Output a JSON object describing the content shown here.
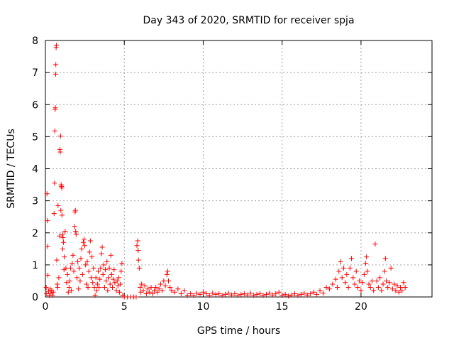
{
  "chart_data": {
    "type": "scatter",
    "title": "Day 343 of 2020, SRMTID for receiver spja",
    "xlabel": "GPS time / hours",
    "ylabel": "SRMTID / TECUs",
    "xlim": [
      0,
      24.5
    ],
    "ylim": [
      0,
      8
    ],
    "xticks": [
      0,
      5,
      10,
      15,
      20
    ],
    "yticks": [
      0,
      1,
      2,
      3,
      4,
      5,
      6,
      7,
      8
    ],
    "grid": true,
    "legend": "none",
    "marker": "+",
    "color": "#ff0000",
    "series": [
      {
        "name": "SRMTID",
        "points": [
          [
            0.05,
            0.3
          ],
          [
            0.08,
            0.1
          ],
          [
            0.1,
            3.22
          ],
          [
            0.12,
            2.38
          ],
          [
            0.14,
            1.58
          ],
          [
            0.16,
            0.68
          ],
          [
            0.2,
            0.18
          ],
          [
            0.25,
            0.05
          ],
          [
            0.3,
            0.25
          ],
          [
            0.35,
            0.12
          ],
          [
            0.4,
            0.2
          ],
          [
            0.45,
            0.05
          ],
          [
            0.5,
            0.15
          ],
          [
            0.55,
            2.6
          ],
          [
            0.58,
            3.55
          ],
          [
            0.6,
            5.18
          ],
          [
            0.62,
            5.85
          ],
          [
            0.63,
            5.9
          ],
          [
            0.65,
            6.95
          ],
          [
            0.66,
            7.25
          ],
          [
            0.68,
            7.78
          ],
          [
            0.7,
            7.85
          ],
          [
            0.72,
            1.15
          ],
          [
            0.75,
            0.4
          ],
          [
            0.78,
            0.3
          ],
          [
            0.8,
            2.85
          ],
          [
            0.85,
            0.6
          ],
          [
            0.9,
            1.9
          ],
          [
            0.92,
            4.6
          ],
          [
            0.94,
            4.52
          ],
          [
            0.96,
            5.02
          ],
          [
            0.98,
            2.7
          ],
          [
            1.0,
            3.5
          ],
          [
            1.02,
            3.45
          ],
          [
            1.04,
            3.4
          ],
          [
            1.05,
            2.55
          ],
          [
            1.08,
            1.95
          ],
          [
            1.1,
            1.5
          ],
          [
            1.12,
            1.85
          ],
          [
            1.15,
            1.7
          ],
          [
            1.18,
            0.85
          ],
          [
            1.2,
            1.25
          ],
          [
            1.25,
            2.05
          ],
          [
            1.3,
            0.9
          ],
          [
            1.35,
            0.45
          ],
          [
            1.4,
            0.7
          ],
          [
            1.45,
            0.15
          ],
          [
            1.5,
            0.3
          ],
          [
            1.55,
            0.5
          ],
          [
            1.6,
            0.9
          ],
          [
            1.65,
            0.2
          ],
          [
            1.7,
            1.05
          ],
          [
            1.75,
            1.3
          ],
          [
            1.8,
            0.8
          ],
          [
            1.85,
            2.2
          ],
          [
            1.88,
            2.65
          ],
          [
            1.9,
            2.7
          ],
          [
            1.92,
            2.05
          ],
          [
            1.95,
            1.95
          ],
          [
            2.0,
            0.6
          ],
          [
            2.05,
            1.1
          ],
          [
            2.1,
            0.25
          ],
          [
            2.15,
            0.9
          ],
          [
            2.2,
            0.5
          ],
          [
            2.25,
            1.2
          ],
          [
            2.3,
            1.5
          ],
          [
            2.35,
            0.7
          ],
          [
            2.4,
            1.7
          ],
          [
            2.45,
            1.8
          ],
          [
            2.5,
            1.6
          ],
          [
            2.55,
            1.0
          ],
          [
            2.6,
            0.4
          ],
          [
            2.65,
            1.1
          ],
          [
            2.7,
            0.3
          ],
          [
            2.75,
            0.8
          ],
          [
            2.8,
            1.4
          ],
          [
            2.85,
            1.75
          ],
          [
            2.9,
            0.6
          ],
          [
            2.95,
            1.25
          ],
          [
            3.0,
            0.45
          ],
          [
            3.05,
            0.9
          ],
          [
            3.1,
            0.3
          ],
          [
            3.15,
            0.05
          ],
          [
            3.2,
            0.6
          ],
          [
            3.25,
            0.2
          ],
          [
            3.3,
            0.4
          ],
          [
            3.35,
            0.8
          ],
          [
            3.4,
            0.3
          ],
          [
            3.45,
            0.55
          ],
          [
            3.5,
            0.9
          ],
          [
            3.55,
            1.35
          ],
          [
            3.6,
            1.55
          ],
          [
            3.65,
            0.7
          ],
          [
            3.7,
            1.0
          ],
          [
            3.75,
            0.3
          ],
          [
            3.8,
            0.85
          ],
          [
            3.85,
            0.5
          ],
          [
            3.9,
            1.1
          ],
          [
            3.95,
            0.2
          ],
          [
            4.0,
            0.6
          ],
          [
            4.05,
            0.9
          ],
          [
            4.1,
            0.4
          ],
          [
            4.15,
            1.3
          ],
          [
            4.2,
            0.7
          ],
          [
            4.25,
            0.3
          ],
          [
            4.3,
            0.55
          ],
          [
            4.35,
            0.85
          ],
          [
            4.4,
            0.45
          ],
          [
            4.5,
            0.2
          ],
          [
            4.55,
            0.5
          ],
          [
            4.6,
            0.35
          ],
          [
            4.65,
            0.6
          ],
          [
            4.7,
            0.15
          ],
          [
            4.75,
            0.4
          ],
          [
            4.8,
            0.8
          ],
          [
            4.85,
            1.05
          ],
          [
            4.9,
            0.05
          ],
          [
            5.0,
            0.0
          ],
          [
            5.2,
            0.0
          ],
          [
            5.4,
            0.0
          ],
          [
            5.6,
            0.0
          ],
          [
            5.75,
            0.0
          ],
          [
            5.8,
            1.6
          ],
          [
            5.85,
            1.75
          ],
          [
            5.88,
            1.45
          ],
          [
            5.9,
            1.15
          ],
          [
            5.95,
            0.9
          ],
          [
            6.0,
            0.3
          ],
          [
            6.05,
            0.15
          ],
          [
            6.1,
            0.4
          ],
          [
            6.2,
            0.2
          ],
          [
            6.3,
            0.35
          ],
          [
            6.4,
            0.1
          ],
          [
            6.5,
            0.25
          ],
          [
            6.6,
            0.15
          ],
          [
            6.7,
            0.3
          ],
          [
            6.8,
            0.1
          ],
          [
            6.9,
            0.2
          ],
          [
            7.0,
            0.3
          ],
          [
            7.1,
            0.15
          ],
          [
            7.2,
            0.25
          ],
          [
            7.3,
            0.4
          ],
          [
            7.4,
            0.2
          ],
          [
            7.5,
            0.5
          ],
          [
            7.6,
            0.35
          ],
          [
            7.7,
            0.7
          ],
          [
            7.75,
            0.8
          ],
          [
            7.8,
            0.5
          ],
          [
            7.9,
            0.3
          ],
          [
            8.0,
            0.2
          ],
          [
            8.2,
            0.15
          ],
          [
            8.4,
            0.25
          ],
          [
            8.6,
            0.1
          ],
          [
            8.8,
            0.2
          ],
          [
            9.0,
            0.05
          ],
          [
            9.2,
            0.1
          ],
          [
            9.4,
            0.05
          ],
          [
            9.6,
            0.12
          ],
          [
            9.8,
            0.08
          ],
          [
            10.0,
            0.15
          ],
          [
            10.2,
            0.1
          ],
          [
            10.4,
            0.05
          ],
          [
            10.6,
            0.12
          ],
          [
            10.8,
            0.08
          ],
          [
            11.0,
            0.1
          ],
          [
            11.2,
            0.05
          ],
          [
            11.4,
            0.08
          ],
          [
            11.6,
            0.12
          ],
          [
            11.8,
            0.06
          ],
          [
            12.0,
            0.1
          ],
          [
            12.2,
            0.05
          ],
          [
            12.4,
            0.08
          ],
          [
            12.6,
            0.1
          ],
          [
            12.8,
            0.06
          ],
          [
            13.0,
            0.12
          ],
          [
            13.2,
            0.05
          ],
          [
            13.4,
            0.08
          ],
          [
            13.6,
            0.1
          ],
          [
            13.8,
            0.05
          ],
          [
            14.0,
            0.08
          ],
          [
            14.2,
            0.12
          ],
          [
            14.4,
            0.06
          ],
          [
            14.6,
            0.1
          ],
          [
            14.8,
            0.15
          ],
          [
            15.0,
            0.05
          ],
          [
            15.2,
            0.08
          ],
          [
            15.4,
            0.03
          ],
          [
            15.6,
            0.06
          ],
          [
            15.8,
            0.1
          ],
          [
            16.0,
            0.05
          ],
          [
            16.2,
            0.08
          ],
          [
            16.4,
            0.12
          ],
          [
            16.6,
            0.06
          ],
          [
            16.8,
            0.1
          ],
          [
            17.0,
            0.15
          ],
          [
            17.2,
            0.08
          ],
          [
            17.4,
            0.2
          ],
          [
            17.6,
            0.12
          ],
          [
            17.8,
            0.3
          ],
          [
            18.0,
            0.25
          ],
          [
            18.2,
            0.4
          ],
          [
            18.4,
            0.55
          ],
          [
            18.5,
            0.3
          ],
          [
            18.6,
            0.8
          ],
          [
            18.7,
            1.1
          ],
          [
            18.8,
            0.6
          ],
          [
            18.9,
            0.9
          ],
          [
            19.0,
            0.45
          ],
          [
            19.1,
            0.7
          ],
          [
            19.2,
            0.3
          ],
          [
            19.3,
            0.9
          ],
          [
            19.4,
            1.2
          ],
          [
            19.5,
            0.6
          ],
          [
            19.6,
            0.4
          ],
          [
            19.7,
            0.8
          ],
          [
            19.8,
            0.3
          ],
          [
            19.9,
            0.5
          ],
          [
            20.0,
            0.2
          ],
          [
            20.1,
            0.45
          ],
          [
            20.2,
            0.7
          ],
          [
            20.3,
            1.05
          ],
          [
            20.35,
            1.25
          ],
          [
            20.4,
            0.8
          ],
          [
            20.5,
            0.4
          ],
          [
            20.6,
            0.3
          ],
          [
            20.7,
            0.5
          ],
          [
            20.8,
            0.2
          ],
          [
            20.9,
            1.65
          ],
          [
            21.0,
            0.5
          ],
          [
            21.1,
            0.3
          ],
          [
            21.2,
            0.6
          ],
          [
            21.3,
            0.2
          ],
          [
            21.4,
            0.4
          ],
          [
            21.5,
            0.8
          ],
          [
            21.55,
            1.2
          ],
          [
            21.6,
            0.5
          ],
          [
            21.7,
            0.3
          ],
          [
            21.8,
            0.45
          ],
          [
            21.9,
            0.9
          ],
          [
            22.0,
            0.25
          ],
          [
            22.1,
            0.4
          ],
          [
            22.2,
            0.2
          ],
          [
            22.3,
            0.35
          ],
          [
            22.4,
            0.15
          ],
          [
            22.5,
            0.3
          ],
          [
            22.6,
            0.2
          ],
          [
            22.7,
            0.45
          ],
          [
            22.8,
            0.3
          ]
        ]
      }
    ]
  }
}
